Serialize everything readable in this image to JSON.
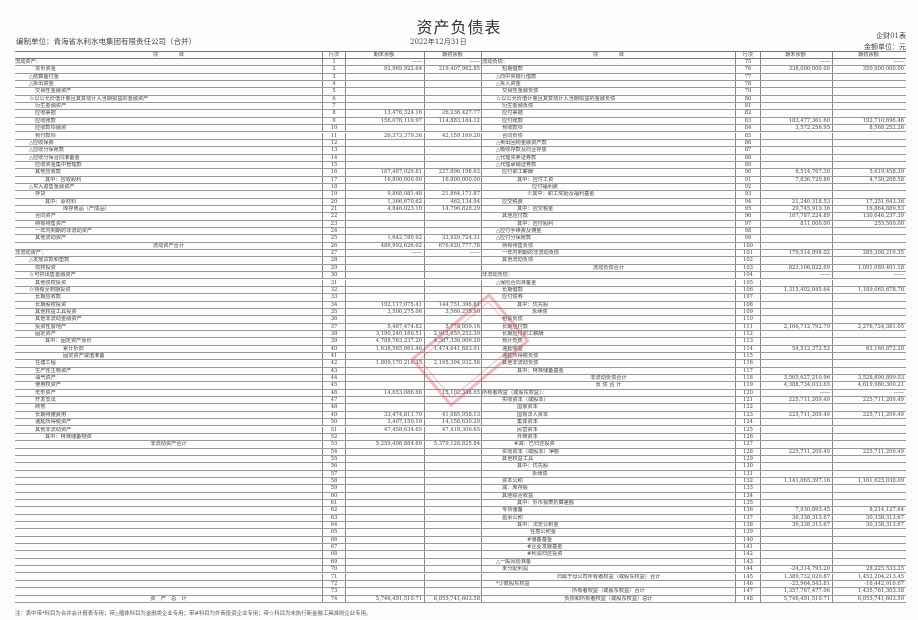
{
  "title": "资产负债表",
  "unit": "编制单位：青海省水利水电集团有限责任公司（合并）",
  "date": "2022年12月31日",
  "form_no": "企财01表",
  "currency_unit": "金额单位：元",
  "header": {
    "item": "项　　　　目",
    "no": "行次",
    "end": "期末余额",
    "begin": "期初余额"
  },
  "stamp_color": "#e0404a",
  "left_rows": [
    [
      "流动资产：",
      "1",
      "——",
      "——"
    ],
    [
      "货币资金",
      "2",
      "92,969,922.64",
      "219,407,962.85"
    ],
    [
      "△结算备付金",
      "3",
      "",
      ""
    ],
    [
      "△拆出资金",
      "4",
      "",
      ""
    ],
    [
      "交易性金融资产",
      "5",
      "",
      ""
    ],
    [
      "☆以公允价值计量且其变动计入当期损益的金融资产",
      "6",
      "",
      ""
    ],
    [
      "衍生金融资产",
      "7",
      "",
      ""
    ],
    [
      "应收票据",
      "8",
      "13,476,324.16",
      "26,236,427.77"
    ],
    [
      "应收账款",
      "9",
      "156,076,110.97",
      "114,883,184.12"
    ],
    [
      "应收款项融资",
      "10",
      "",
      ""
    ],
    [
      "预付款项",
      "11",
      "26,373,379.36",
      "42,159,169.20"
    ],
    [
      "△应收保费",
      "12",
      "",
      ""
    ],
    [
      "△应收分保账款",
      "13",
      "",
      ""
    ],
    [
      "△应收分保合同准备金",
      "14",
      "",
      ""
    ],
    [
      "应收资金集中管理款",
      "15",
      "",
      ""
    ],
    [
      "其他应收款",
      "16",
      "187,487,029.81",
      "227,896,198.63"
    ],
    [
      "其中：应收股利",
      "17",
      "16,800,000.00",
      "16,800,000.00"
    ],
    [
      "△买入返售金融资产",
      "18",
      "",
      ""
    ],
    [
      "存货",
      "19",
      "9,868,081.48",
      "21,864,171.87"
    ],
    [
      "其中：原材料",
      "20",
      "1,366,670.62",
      "462,134.94"
    ],
    [
      "库存商品（产成品）",
      "21",
      "4,846,023.10",
      "14,796,828.29"
    ],
    [
      "合同资产",
      "22",
      "",
      ""
    ],
    [
      "持有待售资产",
      "23",
      "",
      ""
    ],
    [
      "一年内到期的非流动资产",
      "24",
      "",
      ""
    ],
    [
      "其他流动资产",
      "25",
      "1,642,780.92",
      "33,929,724.31"
    ],
    [
      "流动资产合计",
      "26",
      "486,992,626.02",
      "676,620,777.78"
    ],
    [
      "非流动资产：",
      "27",
      "——",
      "——"
    ],
    [
      "△发放贷款和垫款",
      "28",
      "",
      ""
    ],
    [
      "债权投资",
      "29",
      "",
      ""
    ],
    [
      "☆可供出售金融资产",
      "30",
      "",
      ""
    ],
    [
      "其他债权投资",
      "31",
      "",
      ""
    ],
    [
      "☆持有至到期投资",
      "32",
      "",
      ""
    ],
    [
      "长期应收款",
      "33",
      "",
      ""
    ],
    [
      "长期股权投资",
      "34",
      "192,117,075.41",
      "144,751,396.61"
    ],
    [
      "其他权益工具投资",
      "35",
      "3,500,275.06",
      "3,560,275.90"
    ],
    [
      "其他非流动金融资产",
      "36",
      "",
      ""
    ],
    [
      "投资性房地产",
      "37",
      "5,487,474.82",
      "5,778,059.16"
    ],
    [
      "固定资产",
      "38",
      "3,190,240,180.51",
      "2,912,655,252.39"
    ],
    [
      "其中：固定资产原价",
      "39",
      "4,788,763,237.20",
      "4,387,336,906.20"
    ],
    [
      "累计折旧",
      "40",
      "1,638,565,661.46",
      "1,474,641,683.91"
    ],
    [
      "固定资产减值准备",
      "41",
      "",
      ""
    ],
    [
      "在建工程",
      "42",
      "1,809,170,216.35",
      "2,195,394,932.56"
    ],
    [
      "生产性生物资产",
      "43",
      "",
      ""
    ],
    [
      "油气资产",
      "44",
      "",
      ""
    ],
    [
      "使用权资产",
      "45",
      "",
      ""
    ],
    [
      "无形资产",
      "46",
      "14,653,086.66",
      "15,102,348.65"
    ],
    [
      "开发支出",
      "47",
      "",
      ""
    ],
    [
      "商誉",
      "48",
      "",
      ""
    ],
    [
      "长期待摊费用",
      "49",
      "33,474,811.70",
      "41,085,958.13"
    ],
    [
      "递延所得税资产",
      "50",
      "3,407,150.19",
      "14,158,630.29"
    ],
    [
      "其他非流动资产",
      "51",
      "47,458,634.65",
      "47,418,306.65"
    ],
    [
      "其中：特准储备物资",
      "52",
      "",
      ""
    ],
    [
      "非流动资产合计",
      "53",
      "5,259,498,884.69",
      "5,379,128,825.84"
    ],
    [
      "",
      "54",
      "",
      ""
    ],
    [
      "",
      "55",
      "",
      ""
    ],
    [
      "",
      "56",
      "",
      ""
    ],
    [
      "",
      "57",
      "",
      ""
    ],
    [
      "",
      "58",
      "",
      ""
    ],
    [
      "",
      "59",
      "",
      ""
    ],
    [
      "",
      "60",
      "",
      ""
    ],
    [
      "",
      "61",
      "",
      ""
    ],
    [
      "",
      "62",
      "",
      ""
    ],
    [
      "",
      "63",
      "",
      ""
    ],
    [
      "",
      "64",
      "",
      ""
    ],
    [
      "",
      "65",
      "",
      ""
    ],
    [
      "",
      "66",
      "",
      ""
    ],
    [
      "",
      "67",
      "",
      ""
    ],
    [
      "",
      "68",
      "",
      ""
    ],
    [
      "",
      "69",
      "",
      ""
    ],
    [
      "",
      "70",
      "",
      ""
    ],
    [
      "",
      "71",
      "",
      ""
    ],
    [
      "",
      "72",
      "",
      ""
    ],
    [
      "",
      "73",
      "",
      ""
    ],
    [
      "资　产　总　计",
      "74",
      "5,746,491,510.71",
      "6,055,741,603.58"
    ]
  ],
  "right_rows": [
    [
      "流动负债：",
      "75",
      "——",
      "——"
    ],
    [
      "短期借款",
      "76",
      "338,000,000.00",
      "350,900,000.00"
    ],
    [
      "△向中央银行借款",
      "77",
      "",
      ""
    ],
    [
      "△拆入资金",
      "78",
      "",
      ""
    ],
    [
      "交易性金融负债",
      "79",
      "",
      ""
    ],
    [
      "☆以公允价值计量且其变动计入当期损益的金融负债",
      "80",
      "",
      ""
    ],
    [
      "衍生金融负债",
      "81",
      "",
      ""
    ],
    [
      "应付票据",
      "82",
      "",
      ""
    ],
    [
      "应付账款",
      "83",
      "183,477,361.60",
      "192,710,696.46"
    ],
    [
      "预收款项",
      "84",
      "3,572,256.95",
      "8,568,252.26"
    ],
    [
      "合同负债",
      "85",
      "",
      ""
    ],
    [
      "△卖出回购金融资产款",
      "86",
      "",
      ""
    ],
    [
      "△吸收存款及同业存放",
      "87",
      "",
      ""
    ],
    [
      "△代理买卖证券款",
      "88",
      "",
      ""
    ],
    [
      "△代理承销证券款",
      "89",
      "",
      ""
    ],
    [
      "应付职工薪酬",
      "90",
      "8,514,767.30",
      "5,619,458.39"
    ],
    [
      "其中：应付工资",
      "91",
      "7,836,729.86",
      "4,730,268.58"
    ],
    [
      "应付福利费",
      "92",
      "",
      ""
    ],
    [
      "※其中：职工奖励及福利基金",
      "93",
      "",
      ""
    ],
    [
      "应交税费",
      "94",
      "21,240,318.53",
      "17,251,643.36"
    ],
    [
      "其中：应交税金",
      "95",
      "20,745,919.36",
      "16,864,889.53"
    ],
    [
      "其他应付款",
      "96",
      "107,787,224.89",
      "130,646,237.39"
    ],
    [
      "其中：应付股利",
      "97",
      "811,000.00",
      "255,500.00"
    ],
    [
      "△应付手续费及佣金",
      "98",
      "",
      ""
    ],
    [
      "△应付分保账款",
      "99",
      "",
      ""
    ],
    [
      "持有待售负债",
      "100",
      "",
      ""
    ],
    [
      "一年内到期的非流动负债",
      "101",
      "179,514,898.02",
      "285,398,210.35"
    ],
    [
      "其他流动负债",
      "102",
      "",
      ""
    ],
    [
      "流动负债合计",
      "103",
      "823,106,822.69",
      "1,091,089,401.18"
    ],
    [
      "非流动负债：",
      "104",
      "——",
      "——"
    ],
    [
      "△保险合同准备金",
      "105",
      "",
      ""
    ],
    [
      "长期借款",
      "106",
      "1,315,402,045.64",
      "1,189,065,678.78"
    ],
    [
      "应付债券",
      "107",
      "",
      ""
    ],
    [
      "其中：优先股",
      "108",
      "",
      ""
    ],
    [
      "永续债",
      "109",
      "",
      ""
    ],
    [
      "租赁负债",
      "110",
      "",
      ""
    ],
    [
      "长期应付款",
      "111",
      "2,166,712,792.79",
      "2,276,724,381.05"
    ],
    [
      "长期应付职工薪酬",
      "112",
      "",
      ""
    ],
    [
      "预计负债",
      "113",
      "",
      ""
    ],
    [
      "递延收益",
      "114",
      "54,512,372.52",
      "63,160,872.20"
    ],
    [
      "递延所得税负债",
      "115",
      "",
      ""
    ],
    [
      "其他非流动负债",
      "116",
      "",
      ""
    ],
    [
      "其中：特准储备基金",
      "117",
      "",
      ""
    ],
    [
      "非流动负债合计",
      "118",
      "3,565,627,210.96",
      "3,528,890,899.03"
    ],
    [
      "负 债 合 计",
      "119",
      "4,388,734,033.65",
      "4,619,980,300.21"
    ],
    [
      "所有者权益（或股东权益）：",
      "120",
      "——",
      "——"
    ],
    [
      "实收资本（或股本）",
      "121",
      "225,711,209.49",
      "225,711,209.49"
    ],
    [
      "国家资本",
      "122",
      "",
      ""
    ],
    [
      "国有法人资本",
      "123",
      "225,711,209.49",
      "225,711,209.49"
    ],
    [
      "集体资本",
      "124",
      "",
      ""
    ],
    [
      "民营资本",
      "125",
      "",
      ""
    ],
    [
      "外商资本",
      "126",
      "",
      ""
    ],
    [
      "#减：已归还投资",
      "127",
      "",
      ""
    ],
    [
      "实收资本（或股本）净额",
      "128",
      "225,711,209.49",
      "225,711,209.49"
    ],
    [
      "其他权益工具",
      "129",
      "",
      ""
    ],
    [
      "其中：优先股",
      "130",
      "",
      ""
    ],
    [
      "永续债",
      "131",
      "",
      ""
    ],
    [
      "资本公积",
      "132",
      "1,141,065,397.16",
      "1,161,625,030.09"
    ],
    [
      "减：库存股",
      "133",
      "",
      ""
    ],
    [
      "其他综合收益",
      "134",
      "",
      ""
    ],
    [
      "其中：外币报表折算差额",
      "135",
      "",
      ""
    ],
    [
      "专项储备",
      "136",
      "7,930,893.45",
      "8,214,127.64"
    ],
    [
      "盈余公积",
      "137",
      "30,338,313.67",
      "30,338,313.67"
    ],
    [
      "其中：法定公积金",
      "138",
      "30,338,313.67",
      "30,338,313.67"
    ],
    [
      "任意公积金",
      "139",
      "",
      ""
    ],
    [
      "#储备基金",
      "140",
      "",
      ""
    ],
    [
      "#企业发展基金",
      "141",
      "",
      ""
    ],
    [
      "#利润归还投资",
      "142",
      "",
      ""
    ],
    [
      "△一般风险准备",
      "143",
      "",
      ""
    ],
    [
      "未分配利润",
      "144",
      "-24,314,793.20",
      "28,225,533.25"
    ],
    [
      "归属于母公司所有者权益（或股东权益）合计",
      "145",
      "1,380,732,020.87",
      "1,452,204,213.45"
    ],
    [
      "*少数股东权益",
      "146",
      "-22,964,543.81",
      "-16,442,910.07"
    ],
    [
      "所有者权益（或股东权益）合计",
      "147",
      "1,357,767,477.06",
      "1,435,761,303.38"
    ],
    [
      "负债和所有者权益（或股东权益）总计",
      "148",
      "5,746,491,510.71",
      "6,055,741,603.59"
    ]
  ],
  "note": "注：表中带*科目为合并会计报表专用；带△楷体科目为金融类企业专用；带#科目为外商投资企业专用；带☆科目为未执行新金融工具准则企业专用。"
}
